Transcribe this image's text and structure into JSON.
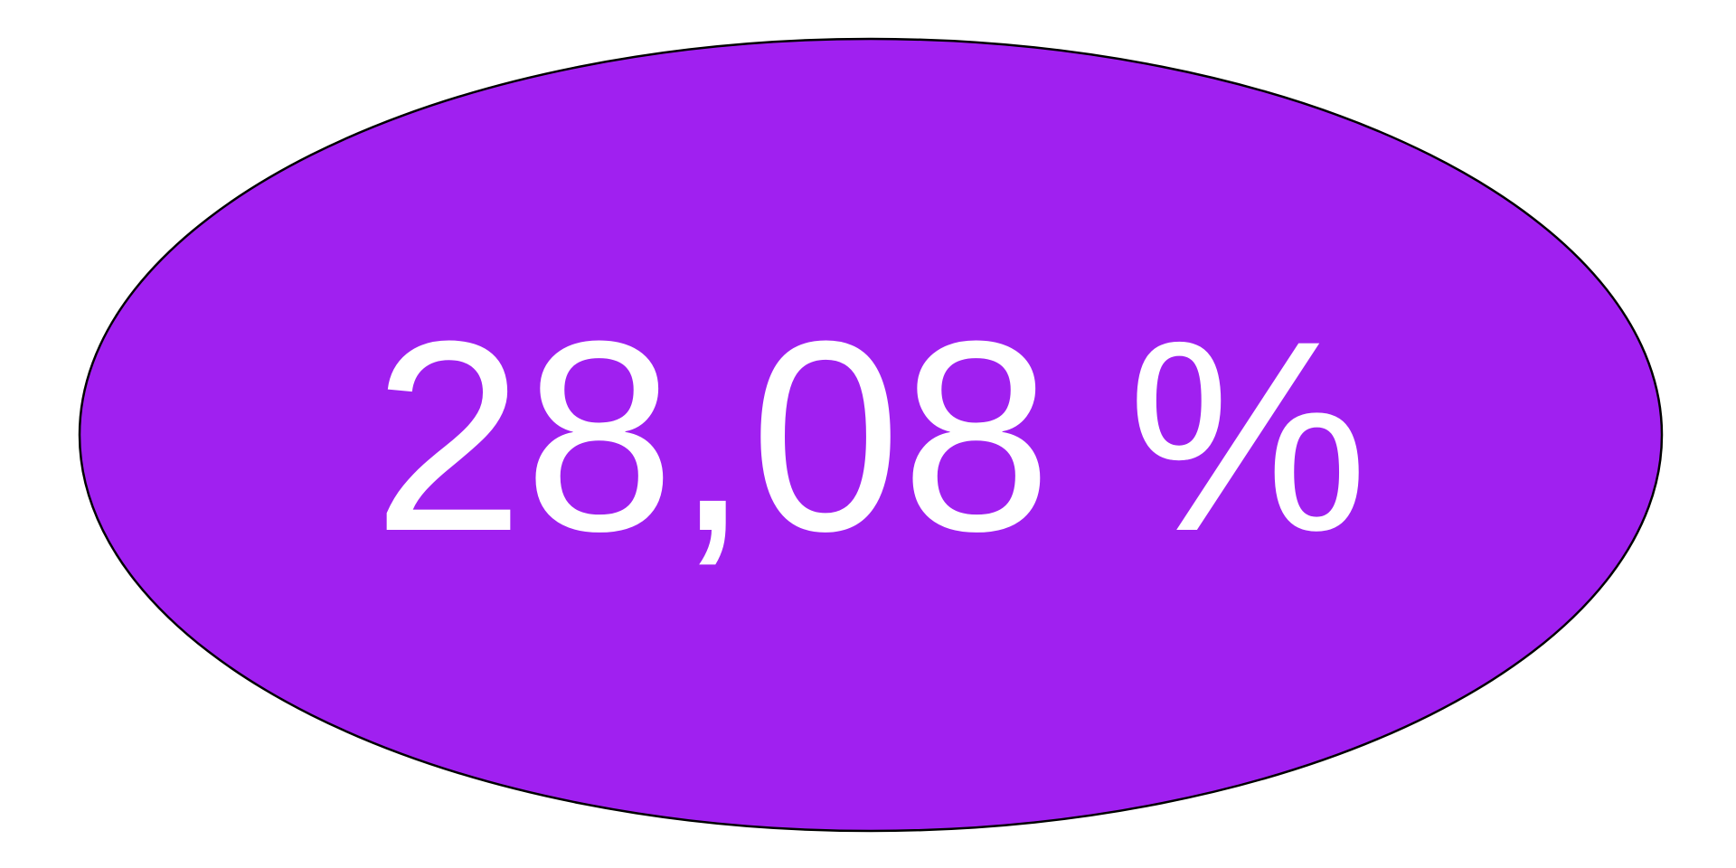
{
  "badge": {
    "value_text": "28,08 %",
    "fill_color": "#a020f0",
    "stroke_color": "#000000",
    "text_color": "#ffffff"
  }
}
